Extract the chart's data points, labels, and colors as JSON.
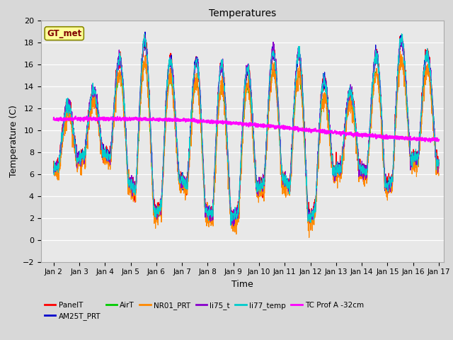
{
  "title": "Temperatures",
  "xlabel": "Time",
  "ylabel": "Temperature (C)",
  "ylim": [
    -2,
    20
  ],
  "xlim": [
    1.5,
    17.2
  ],
  "xticks": [
    2,
    3,
    4,
    5,
    6,
    7,
    8,
    9,
    10,
    11,
    12,
    13,
    14,
    15,
    16,
    17
  ],
  "xtick_labels": [
    "Jan 2",
    "Jan 3",
    "Jan 4",
    "Jan 5",
    "Jan 6",
    "Jan 7",
    "Jan 8",
    "Jan 9",
    "Jan 10",
    "Jan 11",
    "Jan 12",
    "Jan 13",
    "Jan 14",
    "Jan 15",
    "Jan 16",
    "Jan 17"
  ],
  "series_colors": {
    "PanelT": "#ff0000",
    "AM25T_PRT": "#0000cc",
    "AirT": "#00cc00",
    "NR01_PRT": "#ff8800",
    "li75_t": "#8800cc",
    "li77_temp": "#00cccc",
    "TC Prof A -32cm": "#ff00ff"
  },
  "gt_met_box_color": "#ffff99",
  "gt_met_text_color": "#800000",
  "background_color": "#e8e8e8",
  "grid_color": "#ffffff",
  "fig_bg": "#d8d8d8"
}
